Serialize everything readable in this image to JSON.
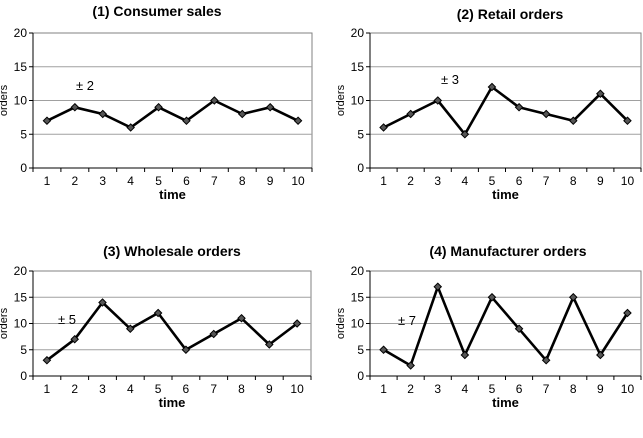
{
  "chart_data": [
    {
      "type": "line",
      "title": "(1) Consumer sales",
      "xlabel": "time",
      "ylabel": "orders",
      "annotation": "± 2",
      "x": [
        1,
        2,
        3,
        4,
        5,
        6,
        7,
        8,
        9,
        10
      ],
      "values": [
        7,
        9,
        8,
        6,
        9,
        7,
        10,
        8,
        9,
        7
      ],
      "ylim": [
        0,
        20
      ],
      "yticks": [
        0,
        5,
        10,
        15,
        20
      ],
      "grid": true,
      "line_color": "#000000"
    },
    {
      "type": "line",
      "title": "(2) Retail orders",
      "xlabel": "time",
      "ylabel": "orders",
      "annotation": "± 3",
      "x": [
        1,
        2,
        3,
        4,
        5,
        6,
        7,
        8,
        9,
        10
      ],
      "values": [
        6,
        8,
        10,
        5,
        12,
        9,
        8,
        7,
        11,
        7
      ],
      "ylim": [
        0,
        20
      ],
      "yticks": [
        0,
        5,
        10,
        15,
        20
      ],
      "grid": true,
      "line_color": "#000000"
    },
    {
      "type": "line",
      "title": "(3) Wholesale orders",
      "xlabel": "time",
      "ylabel": "orders",
      "annotation": "± 5",
      "x": [
        1,
        2,
        3,
        4,
        5,
        6,
        7,
        8,
        9,
        10
      ],
      "values": [
        3,
        7,
        14,
        9,
        12,
        5,
        8,
        11,
        6,
        10
      ],
      "ylim": [
        0,
        20
      ],
      "yticks": [
        0,
        5,
        10,
        15,
        20
      ],
      "grid": true,
      "line_color": "#000000"
    },
    {
      "type": "line",
      "title": "(4) Manufacturer orders",
      "xlabel": "time",
      "ylabel": "orders",
      "annotation": "± 7",
      "x": [
        1,
        2,
        3,
        4,
        5,
        6,
        7,
        8,
        9,
        10
      ],
      "values": [
        5,
        2,
        17,
        4,
        15,
        9,
        3,
        15,
        4,
        12
      ],
      "ylim": [
        0,
        20
      ],
      "yticks": [
        0,
        5,
        10,
        15,
        20
      ],
      "grid": true,
      "line_color": "#000000"
    }
  ]
}
